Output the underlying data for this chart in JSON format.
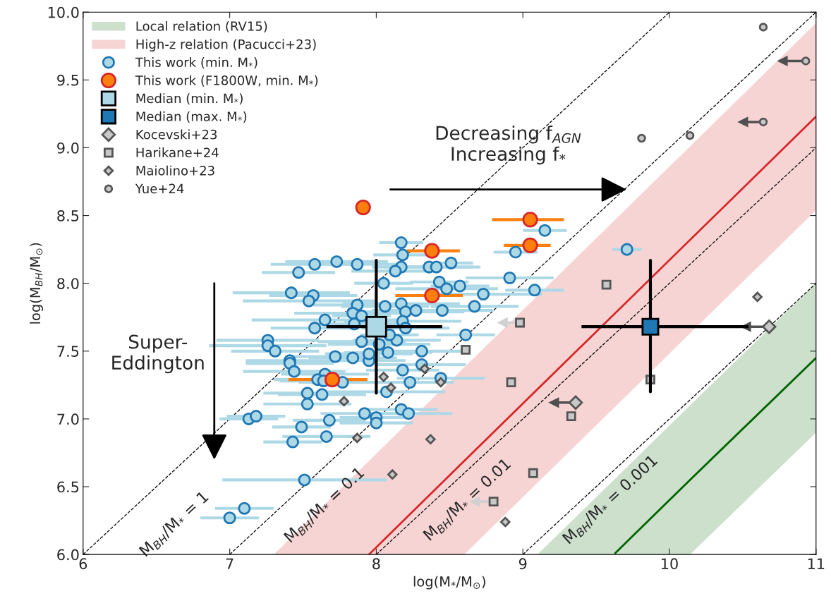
{
  "chart_data": {
    "type": "scatter",
    "xlabel": "log(M$_{*}$/M$_{⊙}$)",
    "ylabel": "log(M$_{BH}$/M$_{⊙}$)",
    "xlim": [
      6,
      11
    ],
    "ylim": [
      6,
      10
    ],
    "xticks": [
      6,
      7,
      8,
      9,
      10,
      11
    ],
    "yticks": [
      {
        "value": 6,
        "label": "6.0"
      },
      6.5,
      {
        "value": 7,
        "label": "7.0"
      },
      7.5,
      {
        "value": 8,
        "label": "8.0"
      },
      8.5,
      {
        "value": 9,
        "label": "9.0"
      },
      9.5,
      {
        "value": 10,
        "label": "10.0"
      }
    ],
    "grid": false,
    "legend": "top left",
    "series": [
      {
        "name": "Local relation (RV15)",
        "type": "line",
        "color": "#006400",
        "x": [
          9.1,
          9.63,
          10.14,
          11
        ],
        "values": [
          null,
          6.01,
          6.55,
          7.45
        ],
        "lower": [
          6.0,
          6.0,
          6.0,
          6.9
        ],
        "upper": [
          6.0,
          6.56,
          7.1,
          8.0
        ]
      },
      {
        "name": "High-z relation (Pacucci+23)",
        "type": "line",
        "color": "#d62728",
        "x": [
          7.3,
          7.95,
          8.6,
          11
        ],
        "values": [
          null,
          6.0,
          6.69,
          9.23
        ],
        "lower": [
          6.0,
          6.0,
          6.0,
          8.54
        ],
        "upper": [
          6.0,
          6.69,
          7.38,
          9.92
        ]
      },
      {
        "type": "line",
        "color": "#000000",
        "line_style": "dashed",
        "x": [
          6,
          10
        ],
        "values": [
          6,
          10
        ]
      },
      {
        "type": "line",
        "color": "#000000",
        "line_style": "dashed",
        "x": [
          7,
          11
        ],
        "values": [
          6,
          10
        ]
      },
      {
        "type": "line",
        "color": "#000000",
        "line_style": "dashed",
        "x": [
          8,
          11
        ],
        "values": [
          6,
          9
        ]
      },
      {
        "type": "line",
        "color": "#000000",
        "line_style": "dashed",
        "x": [
          9,
          11
        ],
        "values": [
          6,
          8
        ]
      },
      {
        "name": "This work (min. M$_{*}$)",
        "marker": "circle",
        "color": "#add8e6",
        "x": [
          7.58,
          7.73,
          7.87,
          7.47,
          7.42,
          7.57,
          7.54,
          7.87,
          7.84,
          7.65,
          7.58,
          7.9,
          7.26,
          7.26,
          7.31,
          7.41,
          7.72,
          7.84,
          8.17,
          8.18,
          8.17,
          8.13,
          8.05,
          8.36,
          8.41,
          8.51,
          8.43,
          8.48,
          8.57,
          9.15,
          8.95,
          8.91,
          9.08,
          8.73,
          8.67,
          8.61,
          8.45,
          8.06,
          8.17,
          8.2,
          8.27,
          8.18,
          7.85,
          7.9,
          8.02,
          8.08,
          8.14,
          8.09,
          8.2,
          8.31,
          7.95,
          8.18,
          8.31,
          7.95,
          8.23,
          8.07,
          8.44,
          8.17,
          8.22,
          8.0,
          8.0,
          7.92,
          7.41,
          7.44,
          7.65,
          7.6,
          7.64,
          7.77,
          7.53,
          7.63,
          7.53,
          7.13,
          7.18,
          7.68,
          7.49,
          7.66,
          7.43,
          7.51,
          7.1,
          7.0,
          9.71
        ],
        "values": [
          8.14,
          8.16,
          8.14,
          8.08,
          7.93,
          7.91,
          7.87,
          7.84,
          7.78,
          7.73,
          7.67,
          7.76,
          7.58,
          7.54,
          7.5,
          7.43,
          7.46,
          7.45,
          8.3,
          8.21,
          8.12,
          8.09,
          8.0,
          8.12,
          8.12,
          8.15,
          8.01,
          7.96,
          7.98,
          8.39,
          8.23,
          8.04,
          7.95,
          7.92,
          7.83,
          7.62,
          7.8,
          7.83,
          7.85,
          7.79,
          7.8,
          7.72,
          7.7,
          7.57,
          7.55,
          7.49,
          7.58,
          7.62,
          7.67,
          7.5,
          7.43,
          7.36,
          7.4,
          7.48,
          7.27,
          7.2,
          7.3,
          7.07,
          7.04,
          7.01,
          6.97,
          7.04,
          7.41,
          7.35,
          7.33,
          7.29,
          7.28,
          7.27,
          7.19,
          7.18,
          7.11,
          7.0,
          7.02,
          6.99,
          6.94,
          6.87,
          6.83,
          6.55,
          6.34,
          6.27,
          8.25
        ],
        "xerrors": [
          0.3,
          0.35,
          0.3,
          0.25,
          0.4,
          0.3,
          0.45,
          0.3,
          0.4,
          0.5,
          0.3,
          0.2,
          0.35,
          0.4,
          0.3,
          0.3,
          0.3,
          0.3,
          0.15,
          0.2,
          0.2,
          0.3,
          0.2,
          0.3,
          0.3,
          0.15,
          0.2,
          0.35,
          0.2,
          0.15,
          0.15,
          0.3,
          0.2,
          0.4,
          0.3,
          0.2,
          0.35,
          0.3,
          0.4,
          0.4,
          0.3,
          0.4,
          0.3,
          0.3,
          0.35,
          0.3,
          0.3,
          0.2,
          0.3,
          0.3,
          0.25,
          0.25,
          0.3,
          0.3,
          0.3,
          0.4,
          0.3,
          0.25,
          0.3,
          0.25,
          0.25,
          0.3,
          0.3,
          0.35,
          0.3,
          0.3,
          0.3,
          0.3,
          0.3,
          0.3,
          0.3,
          0.2,
          0.2,
          0.25,
          0.2,
          0.3,
          0.2,
          0.56,
          0.2,
          0.2,
          0.1
        ]
      },
      {
        "name": "This work (F1800W, min. M$_{*}$)",
        "marker": "circle",
        "color": "#ff7f0e",
        "x": [
          7.91,
          9.05,
          9.05,
          8.38,
          8.38,
          7.7
        ],
        "values": [
          8.56,
          8.47,
          8.28,
          8.24,
          7.91,
          7.29
        ],
        "xerrors": [
          [
            7.86,
            7.96
          ],
          [
            8.79,
            9.28
          ],
          [
            8.87,
            9.19
          ],
          [
            8.21,
            8.57
          ],
          [
            8.13,
            8.59
          ],
          [
            7.4,
            7.94
          ]
        ]
      },
      {
        "name": "Median (min. M$_{*}$)",
        "marker": "square",
        "color": "#add8e6",
        "x": [
          8.0
        ],
        "values": [
          7.68
        ],
        "xerrors": [
          [
            7.66,
            8.45
          ]
        ],
        "errors": [
          [
            7.19,
            8.17
          ]
        ]
      },
      {
        "name": "Median (max. M$_{*}$)",
        "marker": "square",
        "color": "#1f77b4",
        "x": [
          9.87
        ],
        "values": [
          7.68
        ],
        "xerrors": [
          [
            9.4,
            10.54
          ]
        ],
        "errors": [
          [
            7.2,
            8.17
          ]
        ]
      },
      {
        "name": "Kocevski+23",
        "marker": "diamond",
        "color": "#c8c8c8",
        "x": [
          9.36,
          10.68
        ],
        "values": [
          7.12,
          7.68
        ],
        "xerrors": [
          [
            9.21,
            9.36
          ],
          [
            10.52,
            10.68
          ]
        ]
      },
      {
        "name": "Harikane+24",
        "marker": "square",
        "color": "#c8c8c8",
        "x": [
          9.57,
          8.98,
          8.61,
          8.92,
          9.87,
          9.33,
          9.07,
          8.8
        ],
        "values": [
          7.99,
          7.71,
          7.51,
          7.27,
          7.29,
          7.02,
          6.6,
          6.39
        ],
        "xerrors": [
          null,
          [
            8.86,
            8.98
          ],
          null,
          null,
          null,
          null,
          null,
          [
            8.67,
            8.8
          ]
        ]
      },
      {
        "name": "Maiolino+23",
        "marker": "diamond",
        "color": "#c8c8c8",
        "x": [
          10.6,
          8.33,
          8.05,
          8.44,
          8.1,
          8.37,
          8.11,
          8.88,
          7.78,
          7.87
        ],
        "values": [
          7.9,
          7.37,
          7.31,
          7.27,
          7.23,
          6.85,
          6.59,
          6.24,
          7.13,
          6.86
        ]
      },
      {
        "name": "Yue+24",
        "marker": "circle",
        "color": "#c8c8c8",
        "x": [
          10.64,
          10.93,
          9.81,
          10.14,
          10.64
        ],
        "values": [
          9.89,
          9.64,
          9.07,
          9.09,
          9.19
        ],
        "xerrors": [
          null,
          [
            10.77,
            10.93
          ],
          null,
          null,
          [
            10.5,
            10.64
          ]
        ]
      }
    ],
    "annotations": [
      "Decreasing f$_{AGN}$\nIncreasing f$_{*}$",
      "Super-\nEddington",
      "M$_{BH}$/M$_{*}$ = 1",
      "M$_{BH}$/M$_{*}$ = 0.1",
      "M$_{BH}$/M$_{*}$ = 0.01",
      "M$_{BH}$/M$_{*}$ = 0.001"
    ]
  }
}
